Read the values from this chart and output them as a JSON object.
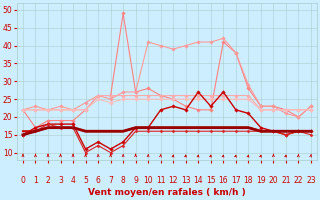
{
  "x": [
    0,
    1,
    2,
    3,
    4,
    5,
    6,
    7,
    8,
    9,
    10,
    11,
    12,
    13,
    14,
    15,
    16,
    17,
    18,
    19,
    20,
    21,
    22,
    23
  ],
  "series": [
    {
      "name": "gust_spike",
      "color": "#ff8080",
      "lw": 0.8,
      "marker": "D",
      "ms": 1.8,
      "values": [
        22,
        17,
        19,
        19,
        19,
        22,
        26,
        26,
        49,
        27,
        28,
        26,
        25,
        23,
        22,
        22,
        41,
        38,
        28,
        23,
        23,
        22,
        20,
        23
      ]
    },
    {
      "name": "gust_high",
      "color": "#ff9999",
      "lw": 0.8,
      "marker": "D",
      "ms": 1.8,
      "values": [
        22,
        23,
        22,
        23,
        22,
        24,
        26,
        25,
        27,
        27,
        41,
        40,
        39,
        40,
        41,
        41,
        42,
        38,
        29,
        23,
        23,
        21,
        20,
        23
      ]
    },
    {
      "name": "wind_avg_pink",
      "color": "#ffaaaa",
      "lw": 0.8,
      "marker": "D",
      "ms": 1.8,
      "values": [
        22,
        22,
        22,
        22,
        22,
        22,
        26,
        26,
        26,
        26,
        26,
        26,
        26,
        26,
        26,
        26,
        26,
        26,
        26,
        22,
        22,
        22,
        22,
        22
      ]
    },
    {
      "name": "wind_med_pink",
      "color": "#ffbbbb",
      "lw": 0.8,
      "marker": "D",
      "ms": 1.8,
      "values": [
        22,
        22,
        22,
        22,
        22,
        22,
        25,
        24,
        25,
        25,
        25,
        25,
        25,
        25,
        25,
        25,
        25,
        25,
        25,
        22,
        22,
        22,
        22,
        22
      ]
    },
    {
      "name": "wind_dark_var",
      "color": "#cc0000",
      "lw": 1.0,
      "marker": "D",
      "ms": 1.8,
      "values": [
        15,
        17,
        18,
        18,
        18,
        11,
        13,
        11,
        13,
        17,
        17,
        22,
        23,
        22,
        27,
        23,
        27,
        22,
        21,
        17,
        16,
        15,
        16,
        16
      ]
    },
    {
      "name": "wind_dark_low",
      "color": "#dd2222",
      "lw": 0.8,
      "marker": "D",
      "ms": 1.5,
      "values": [
        15,
        16,
        18,
        17,
        17,
        10,
        12,
        10,
        12,
        16,
        16,
        16,
        16,
        16,
        16,
        16,
        16,
        16,
        16,
        16,
        16,
        15,
        16,
        15
      ]
    },
    {
      "name": "wind_avg_dark_flat",
      "color": "#cc0000",
      "lw": 1.5,
      "marker": null,
      "ms": 0,
      "values": [
        16,
        16,
        17,
        17,
        17,
        16,
        16,
        16,
        16,
        17,
        17,
        17,
        17,
        17,
        17,
        17,
        17,
        17,
        17,
        16,
        16,
        16,
        16,
        16
      ]
    },
    {
      "name": "wind_avg_darkest",
      "color": "#990000",
      "lw": 2.0,
      "marker": null,
      "ms": 0,
      "values": [
        15,
        16,
        17,
        17,
        17,
        16,
        16,
        16,
        16,
        17,
        17,
        17,
        17,
        17,
        17,
        17,
        17,
        17,
        17,
        16,
        16,
        16,
        16,
        16
      ]
    }
  ],
  "arrow_angles": [
    90,
    90,
    90,
    90,
    90,
    90,
    100,
    90,
    85,
    90,
    75,
    60,
    58,
    58,
    55,
    55,
    52,
    50,
    50,
    50,
    90,
    55,
    70,
    60
  ],
  "ylim": [
    8,
    52
  ],
  "yticks": [
    10,
    15,
    20,
    25,
    30,
    35,
    40,
    45,
    50
  ],
  "xlim": [
    -0.5,
    23.5
  ],
  "xlabel": "Vent moyen/en rafales ( km/h )",
  "bg_color": "#cceeff",
  "grid_color": "#aacccc",
  "tick_color": "#cc0000",
  "label_color": "#cc0000",
  "xlabel_color": "#cc0000",
  "xlabel_fontsize": 6.5,
  "tick_fontsize": 5.5
}
